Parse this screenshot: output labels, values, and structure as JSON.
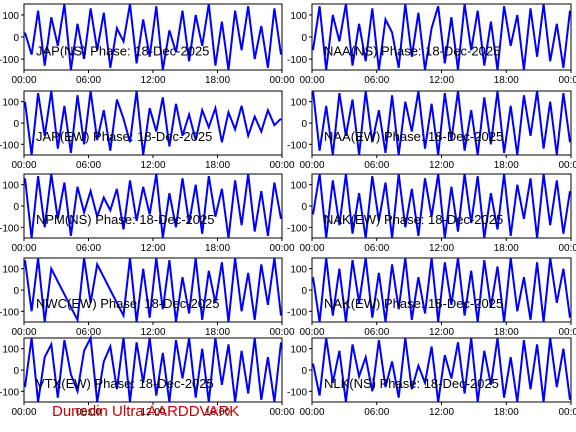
{
  "chart_data": [
    {
      "type": "line",
      "title": "JAP(NS) Phase: 18-Dec-2025",
      "yticks": [
        100,
        0,
        -100
      ],
      "xticks": [
        "00:00",
        "06:00",
        "12:00",
        "18:00",
        "00:00"
      ],
      "ylim": [
        -150,
        150
      ],
      "series": [
        {
          "values": [
            20,
            -80,
            120,
            -130,
            90,
            -40,
            150,
            -150,
            60,
            -100,
            130,
            -60,
            110,
            -140,
            40,
            -20,
            150,
            -120,
            80,
            -90,
            140,
            -150,
            30,
            -70,
            120,
            -110,
            100,
            -40,
            150,
            -130,
            70,
            -150,
            120,
            -60,
            140,
            -100,
            50,
            -140,
            130,
            -80
          ]
        }
      ]
    },
    {
      "type": "line",
      "title": "NAA(NS) Phase: 18-Dec-2025",
      "yticks": [
        100,
        0,
        -100
      ],
      "xticks": [
        "00:00",
        "06:00",
        "12:00",
        "18:00",
        "00:00"
      ],
      "ylim": [
        -150,
        150
      ],
      "series": [
        {
          "values": [
            -60,
            140,
            -150,
            100,
            -20,
            150,
            -130,
            60,
            -110,
            130,
            -150,
            80,
            20,
            -140,
            150,
            -90,
            110,
            -150,
            40,
            140,
            -120,
            90,
            -150,
            150,
            -60,
            120,
            -130,
            70,
            -150,
            140,
            -40,
            100,
            -150,
            130,
            -90,
            150,
            -110,
            60,
            -140,
            120
          ]
        }
      ]
    },
    {
      "type": "line",
      "title": "JAP(EW) Phase: 18-Dec-2025",
      "yticks": [
        100,
        0,
        -100
      ],
      "xticks": [
        "00:00",
        "06:00",
        "12:00",
        "18:00",
        "00:00"
      ],
      "ylim": [
        -150,
        150
      ],
      "series": [
        {
          "values": [
            100,
            -150,
            140,
            -60,
            150,
            -120,
            80,
            -140,
            130,
            -100,
            150,
            -80,
            60,
            -130,
            110,
            20,
            -90,
            150,
            -150,
            70,
            -40,
            120,
            -110,
            90,
            -60,
            40,
            -80,
            60,
            -20,
            70,
            -90,
            50,
            -30,
            80,
            -60,
            30,
            -40,
            60,
            -10,
            20
          ]
        }
      ]
    },
    {
      "type": "line",
      "title": "NAA(EW) Phase: 18-Dec-2025",
      "yticks": [
        100,
        0,
        -100
      ],
      "xticks": [
        "00:00",
        "06:00",
        "12:00",
        "18:00",
        "00:00"
      ],
      "ylim": [
        -150,
        150
      ],
      "series": [
        {
          "values": [
            150,
            -130,
            80,
            -150,
            140,
            -60,
            110,
            -150,
            150,
            -90,
            60,
            -140,
            130,
            -150,
            100,
            -40,
            150,
            -120,
            90,
            -150,
            140,
            -80,
            150,
            -130,
            60,
            -150,
            120,
            -100,
            150,
            -140,
            80,
            -150,
            130,
            -60,
            150,
            -120,
            100,
            -150,
            140,
            -90
          ]
        }
      ]
    },
    {
      "type": "line",
      "title": "NPM(NS) Phase: 18-Dec-2025",
      "yticks": [
        100,
        0,
        -100
      ],
      "xticks": [
        "00:00",
        "06:00",
        "12:00",
        "18:00",
        "00:00"
      ],
      "ylim": [
        -150,
        150
      ],
      "series": [
        {
          "values": [
            130,
            -150,
            140,
            -100,
            150,
            -60,
            110,
            -140,
            90,
            -30,
            70,
            -50,
            40,
            -20,
            80,
            -110,
            120,
            -70,
            90,
            -40,
            150,
            -150,
            60,
            -100,
            130,
            -80,
            100,
            -130,
            140,
            -50,
            80,
            -150,
            120,
            -90,
            150,
            -120,
            70,
            -140,
            110,
            -60
          ]
        }
      ]
    },
    {
      "type": "line",
      "title": "NAK(EW) Phase: 18-Dec-2025",
      "yticks": [
        100,
        0,
        -100
      ],
      "xticks": [
        "00:00",
        "06:00",
        "12:00",
        "18:00",
        "00:00"
      ],
      "ylim": [
        -150,
        150
      ],
      "series": [
        {
          "values": [
            -40,
            150,
            -150,
            120,
            -90,
            150,
            -130,
            60,
            -150,
            140,
            -70,
            110,
            -150,
            150,
            -100,
            80,
            -140,
            130,
            -50,
            150,
            -150,
            90,
            -120,
            150,
            -80,
            140,
            -150,
            60,
            -110,
            150,
            -140,
            100,
            -60,
            130,
            -150,
            150,
            -90,
            120,
            -130,
            70
          ]
        }
      ]
    },
    {
      "type": "line",
      "title": "NWC(EW) Phase: 18-Dec-2025",
      "yticks": [
        100,
        0,
        -100
      ],
      "xticks": [
        "00:00",
        "06:00",
        "12:00",
        "18:00",
        "00:00"
      ],
      "ylim": [
        -150,
        150
      ],
      "series": [
        {
          "values": [
            140,
            -100,
            150,
            -150,
            100,
            40,
            -20,
            -80,
            -140,
            150,
            -60,
            120,
            60,
            0,
            -60,
            -120,
            150,
            -150,
            100,
            -130,
            150,
            -90,
            140,
            -150,
            60,
            -110,
            150,
            -140,
            90,
            -60,
            130,
            -150,
            150,
            -100,
            80,
            -140,
            120,
            -70,
            150,
            -120
          ]
        }
      ]
    },
    {
      "type": "line",
      "title": "NAK(EW) Phase: 18-Dec-2025",
      "yticks": [
        100,
        0,
        -100
      ],
      "xticks": [
        "00:00",
        "06:00",
        "12:00",
        "18:00",
        "00:00"
      ],
      "ylim": [
        -150,
        150
      ],
      "series": [
        {
          "values": [
            60,
            -150,
            150,
            -120,
            100,
            -150,
            140,
            -60,
            150,
            -130,
            80,
            -150,
            120,
            -90,
            150,
            -140,
            60,
            -110,
            150,
            -150,
            130,
            -70,
            150,
            -120,
            90,
            -150,
            140,
            -80,
            110,
            -150,
            150,
            -100,
            60,
            -140,
            130,
            -150,
            150,
            -60,
            100,
            -130
          ]
        }
      ]
    },
    {
      "type": "line",
      "title": "VTX(EW) Phase: 18-Dec-2025",
      "yticks": [
        100,
        0,
        -100
      ],
      "xticks": [
        "00:00",
        "06:00",
        "12:00",
        "18:00",
        "00:00"
      ],
      "ylim": [
        -150,
        150
      ],
      "series": [
        {
          "values": [
            -80,
            150,
            -150,
            60,
            120,
            -130,
            140,
            -20,
            -100,
            90,
            150,
            -150,
            40,
            110,
            -90,
            150,
            -150,
            130,
            -60,
            150,
            -120,
            80,
            -150,
            140,
            -40,
            150,
            -130,
            100,
            -150,
            150,
            -70,
            120,
            -150,
            90,
            -110,
            150,
            -140,
            60,
            -150,
            130
          ]
        }
      ]
    },
    {
      "type": "line",
      "title": "NLK(NS) Phase: 18-Dec-2025",
      "yticks": [
        100,
        0,
        -100
      ],
      "xticks": [
        "00:00",
        "06:00",
        "12:00",
        "18:00",
        "00:00"
      ],
      "ylim": [
        -150,
        150
      ],
      "series": [
        {
          "values": [
            30,
            -120,
            150,
            -60,
            90,
            -150,
            120,
            -30,
            60,
            -100,
            140,
            -80,
            40,
            -130,
            150,
            -90,
            20,
            -60,
            110,
            -150,
            70,
            -40,
            130,
            -110,
            150,
            -150,
            90,
            -70,
            150,
            -130,
            60,
            -150,
            140,
            -90,
            120,
            -150,
            150,
            -80,
            100,
            -140
          ]
        }
      ]
    }
  ],
  "footer": {
    "text": "Dunedin Ultra AARDDVARK",
    "color": "#cc0000"
  },
  "colors": {
    "line": "#0000ff",
    "axes": "#000000",
    "text": "#000000"
  }
}
